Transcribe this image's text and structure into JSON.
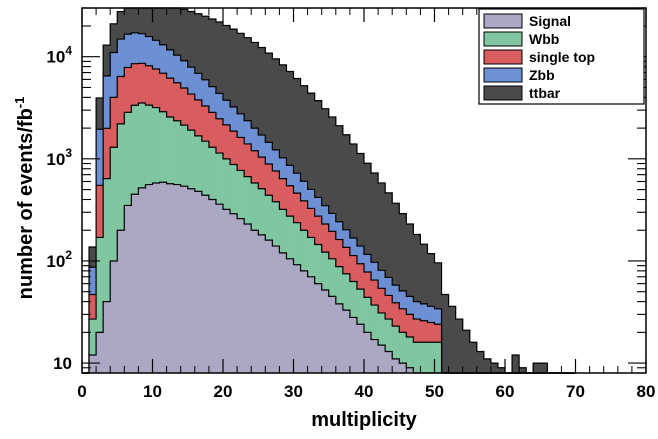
{
  "chart_data": {
    "type": "area",
    "stacked": true,
    "histogram": true,
    "xlabel": "multiplicity",
    "ylabel": "number of events/fb",
    "ylabel_superscript": "-1",
    "xlim": [
      0,
      80
    ],
    "ylim": [
      8,
      30000
    ],
    "log_y": true,
    "x_ticks": [
      0,
      10,
      20,
      30,
      40,
      50,
      60,
      70,
      80
    ],
    "x_tick_labels": [
      "0",
      "10",
      "20",
      "30",
      "40",
      "50",
      "60",
      "70",
      "80"
    ],
    "y_ticks": [
      10,
      100,
      1000,
      10000
    ],
    "y_tick_labels": [
      {
        "base": "10",
        "exp": ""
      },
      {
        "base": "10",
        "exp": "2"
      },
      {
        "base": "10",
        "exp": "3"
      },
      {
        "base": "10",
        "exp": "4"
      }
    ],
    "grid": false,
    "legend_position": "top-right",
    "bin_width": 1,
    "bin_start": 0,
    "series": [
      {
        "name": "Signal",
        "color": "#aba8c4",
        "values": [
          0,
          12,
          20,
          40,
          100,
          200,
          350,
          450,
          520,
          560,
          580,
          590,
          570,
          560,
          540,
          510,
          480,
          440,
          400,
          360,
          320,
          290,
          260,
          230,
          200,
          180,
          160,
          140,
          120,
          105,
          92,
          80,
          70,
          60,
          52,
          45,
          38,
          33,
          28,
          24,
          20,
          17,
          15,
          13,
          11,
          10,
          9,
          8,
          8,
          8,
          8,
          0,
          0,
          0,
          0,
          0,
          0,
          0,
          0,
          0,
          0,
          0,
          0,
          0,
          0,
          0,
          0,
          0,
          0,
          0
        ]
      },
      {
        "name": "Wbb",
        "color": "#7fc6a1",
        "values": [
          0,
          15,
          150,
          600,
          1200,
          2000,
          2500,
          2900,
          3000,
          2800,
          2600,
          2300,
          2000,
          1800,
          1600,
          1400,
          1200,
          1050,
          900,
          780,
          680,
          590,
          510,
          440,
          380,
          330,
          280,
          240,
          200,
          170,
          145,
          120,
          100,
          85,
          70,
          60,
          50,
          42,
          35,
          29,
          24,
          20,
          16,
          14,
          12,
          10,
          9,
          8,
          8,
          8,
          8,
          0,
          0,
          0,
          0,
          0,
          0,
          0,
          0,
          0,
          0,
          0,
          0,
          0,
          0,
          0,
          0,
          0,
          0,
          0
        ]
      },
      {
        "name": "single top",
        "color": "#d95c5f",
        "values": [
          0,
          20,
          380,
          1350,
          2700,
          4200,
          5000,
          5200,
          5100,
          4800,
          4400,
          4000,
          3600,
          3200,
          2800,
          2400,
          2100,
          1800,
          1550,
          1330,
          1150,
          990,
          850,
          730,
          620,
          530,
          450,
          380,
          320,
          270,
          225,
          188,
          157,
          130,
          108,
          90,
          74,
          61,
          50,
          41,
          34,
          28,
          23,
          19,
          16,
          14,
          12,
          11,
          10,
          9,
          8,
          0,
          0,
          0,
          0,
          0,
          0,
          0,
          0,
          0,
          0,
          0,
          0,
          0,
          0,
          0,
          0,
          0,
          0,
          0
        ]
      },
      {
        "name": "Zbb",
        "color": "#6d8fd3",
        "values": [
          0,
          40,
          1400,
          4500,
          7000,
          8500,
          8800,
          8600,
          8200,
          7600,
          6900,
          6200,
          5500,
          4800,
          4200,
          3600,
          3100,
          2650,
          2250,
          1900,
          1600,
          1350,
          1140,
          960,
          800,
          670,
          560,
          465,
          385,
          318,
          262,
          215,
          176,
          144,
          118,
          97,
          80,
          66,
          55,
          46,
          38,
          32,
          27,
          23,
          19,
          17,
          15,
          13,
          12,
          11,
          10,
          0,
          0,
          0,
          0,
          0,
          0,
          0,
          0,
          0,
          0,
          0,
          0,
          0,
          0,
          0,
          0,
          0,
          0,
          0
        ]
      },
      {
        "name": "ttbar",
        "color": "#4a4a4a",
        "values": [
          0,
          50,
          2000,
          6500,
          10000,
          12800,
          14500,
          16500,
          18000,
          19000,
          19500,
          19900,
          20000,
          20000,
          20000,
          19800,
          19500,
          19000,
          18300,
          17500,
          16500,
          15400,
          14200,
          13000,
          11800,
          10600,
          9400,
          8300,
          7300,
          6300,
          5400,
          4600,
          3900,
          3300,
          2750,
          2280,
          1870,
          1520,
          1230,
          990,
          790,
          630,
          500,
          395,
          310,
          240,
          185,
          142,
          108,
          82,
          62,
          47,
          36,
          27,
          21,
          16,
          13,
          11,
          10,
          9,
          8,
          12,
          9,
          8,
          10,
          10,
          8,
          8,
          0,
          0
        ]
      }
    ]
  }
}
